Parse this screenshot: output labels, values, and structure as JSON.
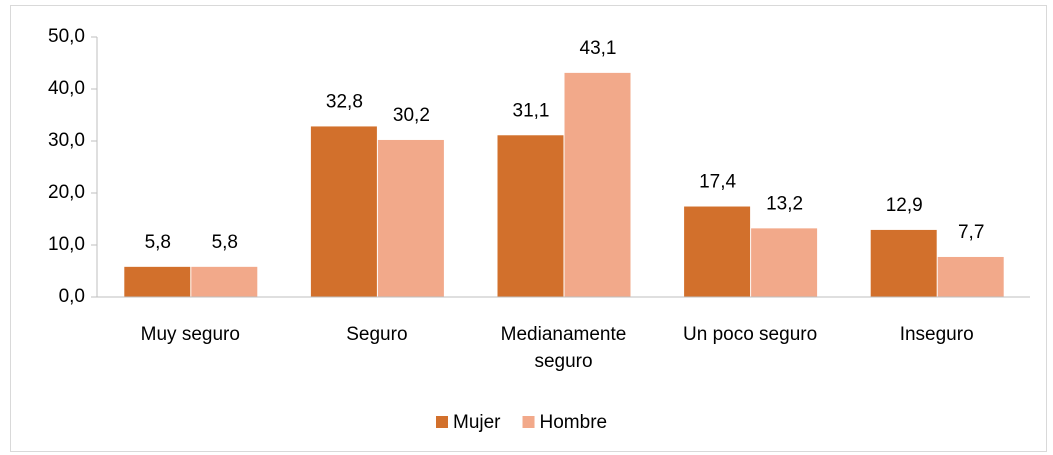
{
  "chart_data": {
    "type": "bar",
    "categories": [
      "Muy seguro",
      "Seguro",
      "Medianamente seguro",
      "Un poco seguro",
      "Inseguro"
    ],
    "series": [
      {
        "name": "Mujer",
        "color": "#d2702c",
        "values": [
          5.8,
          32.8,
          31.1,
          17.4,
          12.9
        ],
        "value_labels": [
          "5,8",
          "32,8",
          "31,1",
          "17,4",
          "12,9"
        ]
      },
      {
        "name": "Hombre",
        "color": "#f2a98a",
        "values": [
          5.8,
          30.2,
          43.1,
          13.2,
          7.7
        ],
        "value_labels": [
          "5,8",
          "30,2",
          "43,1",
          "13,2",
          "7,7"
        ]
      }
    ],
    "ylim": [
      0,
      50
    ],
    "yticks": [
      {
        "value": 0,
        "label": "0,0"
      },
      {
        "value": 10,
        "label": "10,0"
      },
      {
        "value": 20,
        "label": "20,0"
      },
      {
        "value": 30,
        "label": "30,0"
      },
      {
        "value": 40,
        "label": "40,0"
      },
      {
        "value": 50,
        "label": "50,0"
      }
    ],
    "legend": "bottom"
  }
}
